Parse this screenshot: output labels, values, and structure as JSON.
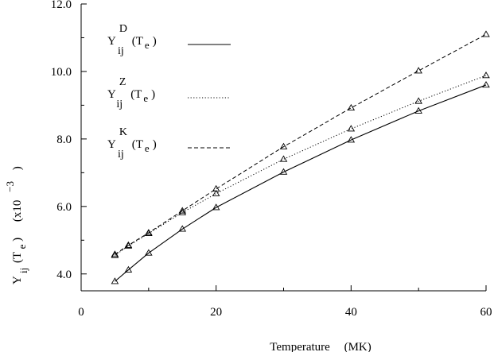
{
  "chart_data": {
    "type": "line",
    "title": "",
    "xlabel": {
      "name": "Temperature",
      "unit": "(MK)"
    },
    "ylabel": {
      "main": "Y",
      "sub": "ij",
      "arg": "(T",
      "arg_sub": "e",
      "close": ")",
      "scale_open": "(x10",
      "scale_exp": "−3",
      "scale_close": ")"
    },
    "xlim": [
      0,
      60
    ],
    "ylim": [
      3.5,
      12.0
    ],
    "xticks": [
      0,
      20,
      40,
      60
    ],
    "xtick_labels": [
      "0",
      "20",
      "40",
      "60"
    ],
    "yticks": [
      4.0,
      6.0,
      8.0,
      10.0,
      12.0
    ],
    "ytick_labels": [
      "4.0",
      "6.0",
      "8.0",
      "10.0",
      "12.0"
    ],
    "grid": false,
    "legend_position": "top-left",
    "series": [
      {
        "key": "D",
        "label": {
          "main": "Y",
          "sub": "ij",
          "sup": "D",
          "arg": "(T",
          "arg_sub": "e",
          "close": ")"
        },
        "style": "solid",
        "x": [
          5,
          7,
          10,
          15,
          20,
          30,
          40,
          50,
          60
        ],
        "y": [
          3.78,
          4.12,
          4.62,
          5.33,
          5.97,
          7.02,
          7.97,
          8.83,
          9.6
        ]
      },
      {
        "key": "Z",
        "label": {
          "main": "Y",
          "sub": "ij",
          "sup": "Z",
          "arg": "(T",
          "arg_sub": "e",
          "close": ")"
        },
        "style": "dotted",
        "x": [
          5,
          7,
          10,
          15,
          20,
          30,
          40,
          50,
          60
        ],
        "y": [
          4.55,
          4.83,
          5.2,
          5.82,
          6.38,
          7.4,
          8.3,
          9.12,
          9.88
        ]
      },
      {
        "key": "K",
        "label": {
          "main": "Y",
          "sub": "ij",
          "sup": "K",
          "arg": "(T",
          "arg_sub": "e",
          "close": ")"
        },
        "style": "dashed",
        "x": [
          5,
          7,
          10,
          15,
          20,
          30,
          40,
          50,
          60
        ],
        "y": [
          4.58,
          4.85,
          5.22,
          5.87,
          6.52,
          7.77,
          8.92,
          10.02,
          11.1
        ]
      }
    ]
  }
}
